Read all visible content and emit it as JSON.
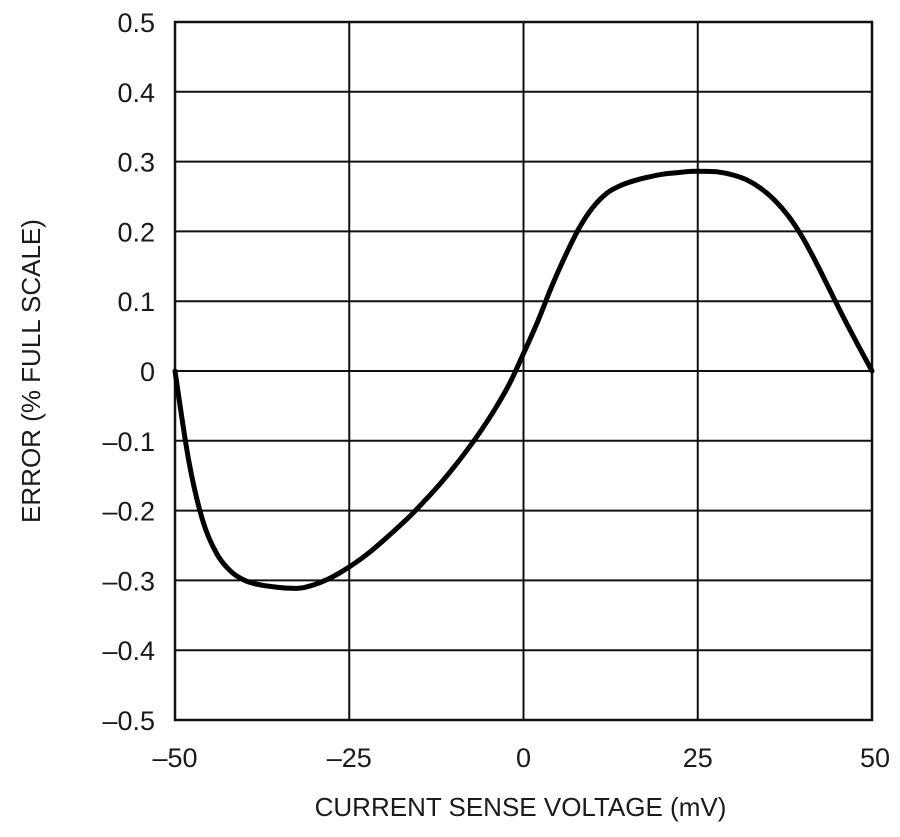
{
  "chart_data": {
    "type": "line",
    "title": "",
    "xlabel": "CURRENT SENSE VOLTAGE (mV)",
    "ylabel": "ERROR (% FULL SCALE)",
    "xlim": [
      -50,
      50
    ],
    "ylim": [
      -0.5,
      0.5
    ],
    "x_ticks": [
      -50,
      -25,
      0,
      25,
      50
    ],
    "x_tick_labels": [
      "–50",
      "–25",
      "0",
      "25",
      "50"
    ],
    "y_ticks": [
      0.5,
      0.4,
      0.3,
      0.2,
      0.1,
      0,
      -0.1,
      -0.2,
      -0.3,
      -0.4,
      -0.5
    ],
    "y_tick_labels": [
      "0.5",
      "0.4",
      "0.3",
      "0.2",
      "0.1",
      "0",
      "–0.1",
      "–0.2",
      "–0.3",
      "–0.4",
      "–0.5"
    ],
    "grid": true,
    "legend": "none",
    "line_color": "#000000",
    "series": [
      {
        "x": [
          -50,
          -48,
          -46,
          -44,
          -42,
          -40,
          -38,
          -36,
          -34,
          -32,
          -30,
          -28,
          -26,
          -24,
          -22,
          -20,
          -18,
          -16,
          -14,
          -12,
          -10,
          -8,
          -6,
          -4,
          -2,
          0,
          2,
          4,
          6,
          8,
          10,
          12,
          14,
          16,
          18,
          20,
          22,
          24,
          26,
          28,
          30,
          32,
          34,
          36,
          38,
          40,
          42,
          44,
          46,
          48,
          50
        ],
        "y": [
          0,
          -0.13,
          -0.215,
          -0.262,
          -0.287,
          -0.3,
          -0.306,
          -0.309,
          -0.311,
          -0.311,
          -0.306,
          -0.298,
          -0.287,
          -0.274,
          -0.259,
          -0.242,
          -0.224,
          -0.205,
          -0.184,
          -0.162,
          -0.138,
          -0.112,
          -0.084,
          -0.053,
          -0.018,
          0.025,
          0.07,
          0.12,
          0.165,
          0.205,
          0.235,
          0.255,
          0.266,
          0.273,
          0.278,
          0.282,
          0.284,
          0.286,
          0.286,
          0.285,
          0.281,
          0.274,
          0.262,
          0.245,
          0.222,
          0.192,
          0.155,
          0.115,
          0.075,
          0.037,
          0
        ]
      }
    ]
  }
}
